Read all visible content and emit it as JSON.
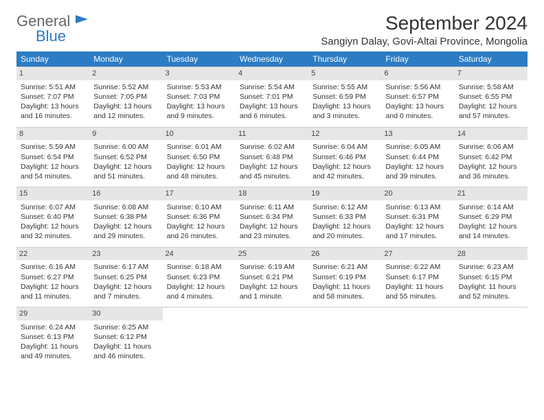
{
  "brand": {
    "word1": "General",
    "word2": "Blue",
    "color_primary": "#2b7cc4",
    "color_text": "#666"
  },
  "title": "September 2024",
  "location": "Sangiyn Dalay, Govi-Altai Province, Mongolia",
  "calendar": {
    "type": "table",
    "header_bg": "#2b7cc4",
    "header_fg": "#ffffff",
    "daynum_bg": "#e6e6e6",
    "border_color": "#cccccc",
    "background_color": "#ffffff",
    "font_family": "Arial",
    "body_fontsize": 10.5,
    "columns": [
      "Sunday",
      "Monday",
      "Tuesday",
      "Wednesday",
      "Thursday",
      "Friday",
      "Saturday"
    ],
    "weeks": [
      [
        {
          "n": 1,
          "sr": "5:51 AM",
          "ss": "7:07 PM",
          "dl": "13 hours and 16 minutes."
        },
        {
          "n": 2,
          "sr": "5:52 AM",
          "ss": "7:05 PM",
          "dl": "13 hours and 12 minutes."
        },
        {
          "n": 3,
          "sr": "5:53 AM",
          "ss": "7:03 PM",
          "dl": "13 hours and 9 minutes."
        },
        {
          "n": 4,
          "sr": "5:54 AM",
          "ss": "7:01 PM",
          "dl": "13 hours and 6 minutes."
        },
        {
          "n": 5,
          "sr": "5:55 AM",
          "ss": "6:59 PM",
          "dl": "13 hours and 3 minutes."
        },
        {
          "n": 6,
          "sr": "5:56 AM",
          "ss": "6:57 PM",
          "dl": "13 hours and 0 minutes."
        },
        {
          "n": 7,
          "sr": "5:58 AM",
          "ss": "6:55 PM",
          "dl": "12 hours and 57 minutes."
        }
      ],
      [
        {
          "n": 8,
          "sr": "5:59 AM",
          "ss": "6:54 PM",
          "dl": "12 hours and 54 minutes."
        },
        {
          "n": 9,
          "sr": "6:00 AM",
          "ss": "6:52 PM",
          "dl": "12 hours and 51 minutes."
        },
        {
          "n": 10,
          "sr": "6:01 AM",
          "ss": "6:50 PM",
          "dl": "12 hours and 48 minutes."
        },
        {
          "n": 11,
          "sr": "6:02 AM",
          "ss": "6:48 PM",
          "dl": "12 hours and 45 minutes."
        },
        {
          "n": 12,
          "sr": "6:04 AM",
          "ss": "6:46 PM",
          "dl": "12 hours and 42 minutes."
        },
        {
          "n": 13,
          "sr": "6:05 AM",
          "ss": "6:44 PM",
          "dl": "12 hours and 39 minutes."
        },
        {
          "n": 14,
          "sr": "6:06 AM",
          "ss": "6:42 PM",
          "dl": "12 hours and 36 minutes."
        }
      ],
      [
        {
          "n": 15,
          "sr": "6:07 AM",
          "ss": "6:40 PM",
          "dl": "12 hours and 32 minutes."
        },
        {
          "n": 16,
          "sr": "6:08 AM",
          "ss": "6:38 PM",
          "dl": "12 hours and 29 minutes."
        },
        {
          "n": 17,
          "sr": "6:10 AM",
          "ss": "6:36 PM",
          "dl": "12 hours and 26 minutes."
        },
        {
          "n": 18,
          "sr": "6:11 AM",
          "ss": "6:34 PM",
          "dl": "12 hours and 23 minutes."
        },
        {
          "n": 19,
          "sr": "6:12 AM",
          "ss": "6:33 PM",
          "dl": "12 hours and 20 minutes."
        },
        {
          "n": 20,
          "sr": "6:13 AM",
          "ss": "6:31 PM",
          "dl": "12 hours and 17 minutes."
        },
        {
          "n": 21,
          "sr": "6:14 AM",
          "ss": "6:29 PM",
          "dl": "12 hours and 14 minutes."
        }
      ],
      [
        {
          "n": 22,
          "sr": "6:16 AM",
          "ss": "6:27 PM",
          "dl": "12 hours and 11 minutes."
        },
        {
          "n": 23,
          "sr": "6:17 AM",
          "ss": "6:25 PM",
          "dl": "12 hours and 7 minutes."
        },
        {
          "n": 24,
          "sr": "6:18 AM",
          "ss": "6:23 PM",
          "dl": "12 hours and 4 minutes."
        },
        {
          "n": 25,
          "sr": "6:19 AM",
          "ss": "6:21 PM",
          "dl": "12 hours and 1 minute."
        },
        {
          "n": 26,
          "sr": "6:21 AM",
          "ss": "6:19 PM",
          "dl": "11 hours and 58 minutes."
        },
        {
          "n": 27,
          "sr": "6:22 AM",
          "ss": "6:17 PM",
          "dl": "11 hours and 55 minutes."
        },
        {
          "n": 28,
          "sr": "6:23 AM",
          "ss": "6:15 PM",
          "dl": "11 hours and 52 minutes."
        }
      ],
      [
        {
          "n": 29,
          "sr": "6:24 AM",
          "ss": "6:13 PM",
          "dl": "11 hours and 49 minutes."
        },
        {
          "n": 30,
          "sr": "6:25 AM",
          "ss": "6:12 PM",
          "dl": "11 hours and 46 minutes."
        },
        null,
        null,
        null,
        null,
        null
      ]
    ],
    "labels": {
      "sunrise": "Sunrise:",
      "sunset": "Sunset:",
      "daylight": "Daylight:"
    }
  }
}
